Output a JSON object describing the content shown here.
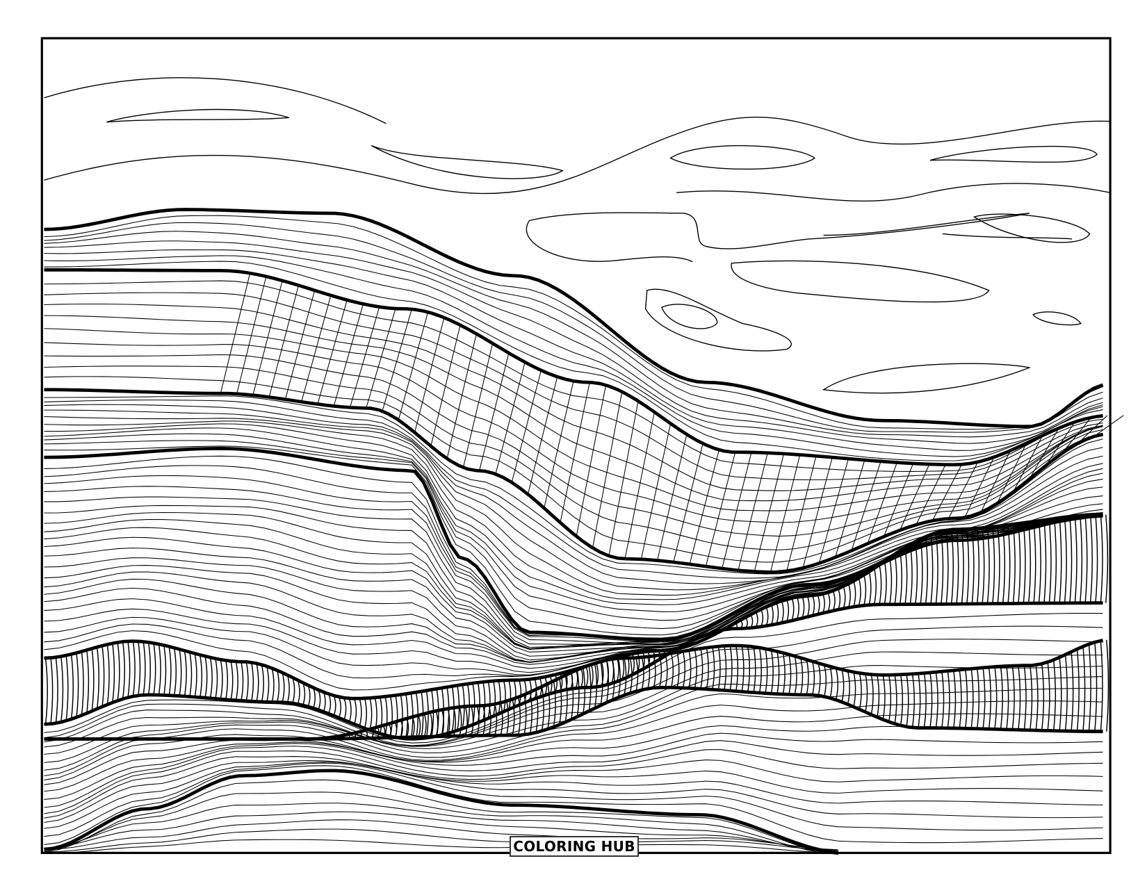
{
  "page": {
    "logo_text": "COLORING HUB",
    "line_color": "#000000",
    "background_color": "#ffffff"
  }
}
